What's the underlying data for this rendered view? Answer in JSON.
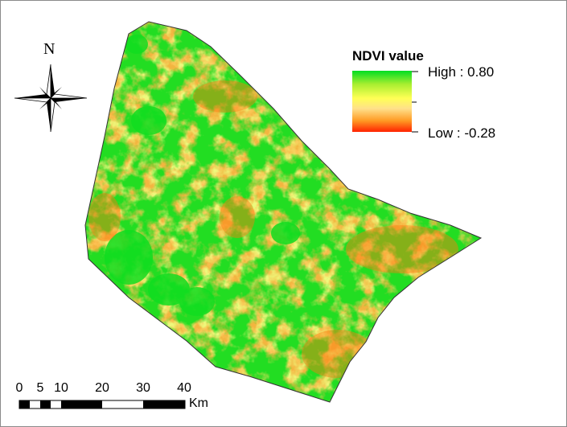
{
  "map": {
    "layer": "NDVI raster",
    "colors": {
      "high": "#00dd22",
      "mid_high": "#a8ee30",
      "mid": "#ffff55",
      "mid_low": "#ff9922",
      "low": "#ff2200",
      "outline": "#333333"
    }
  },
  "north_arrow": {
    "label": "N",
    "icon": "compass-rose-icon"
  },
  "legend": {
    "title": "NDVI value",
    "high_label": "High : 0.80",
    "low_label": "Low : -0.28",
    "high_value": 0.8,
    "low_value": -0.28
  },
  "scale_bar": {
    "ticks": [
      "0",
      "5",
      "10",
      "20",
      "30",
      "40"
    ],
    "unit": "Km"
  }
}
